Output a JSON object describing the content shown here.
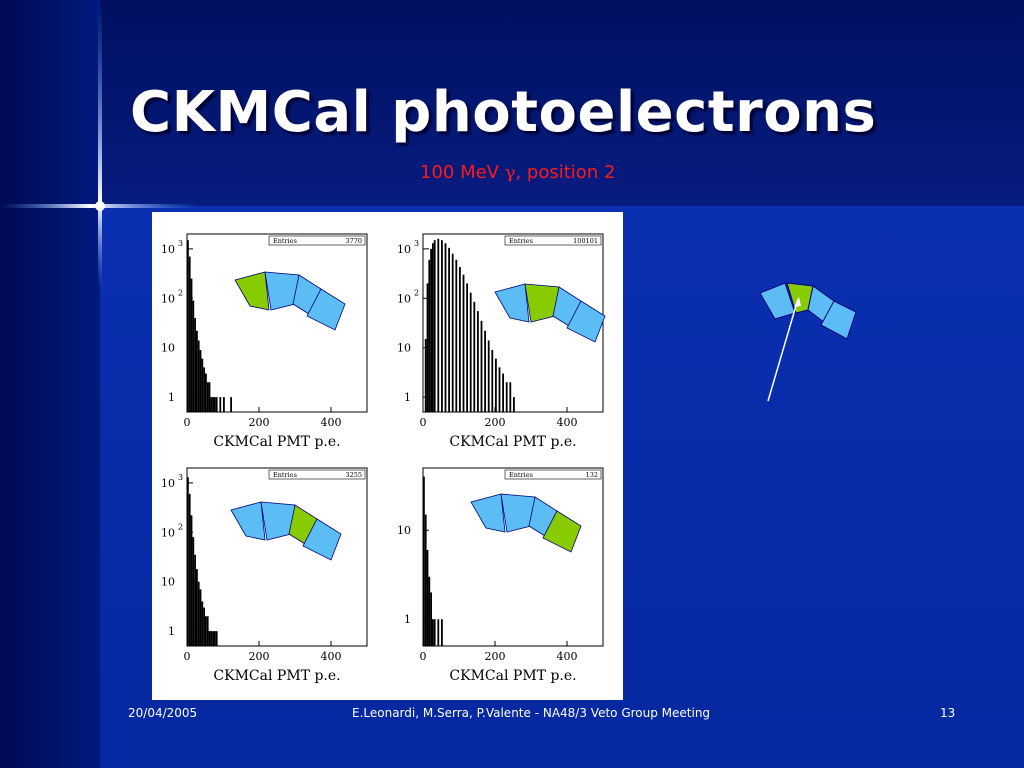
{
  "slide": {
    "title": "CKMCal photoelectrons",
    "subtitle_prefix": "100 MeV ",
    "subtitle_symbol": "γ",
    "subtitle_suffix": ", position 2"
  },
  "footer": {
    "date": "20/04/2005",
    "center": "E.Leonardi, M.Serra, P.Valente - NA48/3 Veto Group Meeting",
    "page": "13"
  },
  "colors": {
    "highlight_cell": "#88cc00",
    "normal_cell": "#5cbcf4",
    "cell_stroke": "#000080"
  },
  "chart_data": [
    {
      "type": "bar",
      "title": "",
      "xlabel": "CKMCal PMT p.e.",
      "ylabel": "",
      "xlim": [
        0,
        500
      ],
      "ylim": [
        0.5,
        2000
      ],
      "yscale": "log",
      "xticks": [
        "0",
        "200",
        "400"
      ],
      "yticks": [
        {
          "base": "10",
          "exp": "3"
        },
        {
          "base": "10",
          "exp": "2"
        },
        {
          "base": "10",
          "exp": ""
        },
        {
          "base": "1",
          "exp": ""
        }
      ],
      "stats": {
        "label": "Entries",
        "value": "3770"
      },
      "highlighted_cell": 0,
      "x": [
        0,
        5,
        10,
        15,
        20,
        25,
        30,
        35,
        40,
        45,
        50,
        55,
        60,
        65,
        70,
        75,
        80,
        90,
        100,
        120
      ],
      "values": [
        1500,
        700,
        250,
        90,
        40,
        22,
        14,
        9,
        6,
        4,
        3,
        2,
        2,
        1,
        1,
        1,
        1,
        1,
        1,
        1
      ]
    },
    {
      "type": "bar",
      "title": "",
      "xlabel": "CKMCal PMT p.e.",
      "ylabel": "",
      "xlim": [
        0,
        500
      ],
      "ylim": [
        0.5,
        2000
      ],
      "yscale": "log",
      "xticks": [
        "0",
        "200",
        "400"
      ],
      "yticks": [
        {
          "base": "10",
          "exp": "3"
        },
        {
          "base": "10",
          "exp": "2"
        },
        {
          "base": "10",
          "exp": ""
        },
        {
          "base": "1",
          "exp": ""
        }
      ],
      "stats": {
        "label": "Entries",
        "value": "100101"
      },
      "highlighted_cell": 1,
      "x": [
        5,
        10,
        15,
        20,
        25,
        30,
        40,
        50,
        60,
        70,
        80,
        90,
        100,
        110,
        120,
        130,
        140,
        150,
        160,
        170,
        180,
        190,
        200,
        210,
        220,
        230,
        240,
        250
      ],
      "values": [
        15,
        200,
        600,
        1000,
        1300,
        1500,
        1600,
        1500,
        1300,
        1050,
        800,
        600,
        430,
        300,
        200,
        130,
        85,
        55,
        35,
        22,
        14,
        9,
        6,
        4,
        3,
        2,
        2,
        1
      ]
    },
    {
      "type": "bar",
      "title": "",
      "xlabel": "CKMCal PMT p.e.",
      "ylabel": "",
      "xlim": [
        0,
        500
      ],
      "ylim": [
        0.5,
        2000
      ],
      "yscale": "log",
      "xticks": [
        "0",
        "200",
        "400"
      ],
      "yticks": [
        {
          "base": "10",
          "exp": "3"
        },
        {
          "base": "10",
          "exp": "2"
        },
        {
          "base": "10",
          "exp": ""
        },
        {
          "base": "1",
          "exp": ""
        }
      ],
      "stats": {
        "label": "Entries",
        "value": "3255"
      },
      "highlighted_cell": 2,
      "x": [
        0,
        5,
        10,
        15,
        20,
        25,
        30,
        35,
        40,
        45,
        50,
        55,
        60,
        65,
        70,
        75,
        80
      ],
      "values": [
        1300,
        600,
        220,
        80,
        35,
        18,
        10,
        7,
        4,
        3,
        2,
        2,
        1,
        1,
        1,
        1,
        1
      ]
    },
    {
      "type": "bar",
      "title": "",
      "xlabel": "CKMCal PMT p.e.",
      "ylabel": "",
      "xlim": [
        0,
        500
      ],
      "ylim": [
        0.5,
        50
      ],
      "yscale": "log",
      "xticks": [
        "0",
        "200",
        "400"
      ],
      "yticks": [
        {
          "base": "10",
          "exp": ""
        },
        {
          "base": "1",
          "exp": ""
        }
      ],
      "stats": {
        "label": "Entries",
        "value": "132"
      },
      "highlighted_cell": 3,
      "x": [
        0,
        5,
        10,
        15,
        20,
        25,
        30,
        40,
        50
      ],
      "values": [
        40,
        15,
        6,
        3,
        2,
        1,
        1,
        1,
        1
      ]
    }
  ]
}
